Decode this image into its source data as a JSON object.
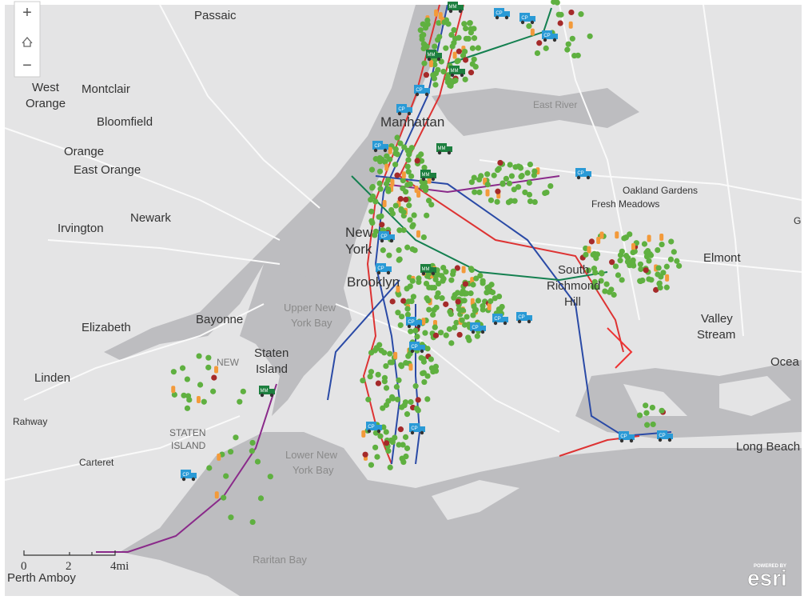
{
  "controls": {
    "zoom_in": "+",
    "zoom_out": "−"
  },
  "labels": {
    "passaic": "Passaic",
    "west_orange": [
      "West",
      "Orange"
    ],
    "montclair": "Montclair",
    "bloomfield": "Bloomfield",
    "orange": "Orange",
    "east_orange": "East Orange",
    "newark": "Newark",
    "irvington": "Irvington",
    "elizabeth": "Elizabeth",
    "bayonne": "Bayonne",
    "linden": "Linden",
    "rahway": "Rahway",
    "carteret": "Carteret",
    "perth_amboy": "Perth Amboy",
    "manhattan": "Manhattan",
    "east_river": "East River",
    "oakland_gardens": "Oakland Gardens",
    "fresh_meadows": "Fresh Meadows",
    "elmont": "Elmont",
    "new_york": [
      "New",
      "York"
    ],
    "brooklyn": "Brooklyn",
    "south_richmond_hill": [
      "South",
      "Richmond",
      "Hill"
    ],
    "valley_stream": [
      "Valley",
      "Stream"
    ],
    "upper_bay": [
      "Upper New",
      "York Bay"
    ],
    "staten_island": [
      "Staten",
      "Island"
    ],
    "staten_island_area": [
      "STATEN",
      "ISLAND"
    ],
    "new_fragment": "NEW",
    "lower_bay": [
      "Lower New",
      "York Bay"
    ],
    "raritan_bay": "Raritan Bay",
    "long_beach": "Long Beach",
    "ocean_fragment": "Ocea",
    "right_fragment": "G"
  },
  "markers": {
    "cp": "CP",
    "mm": "MM"
  },
  "scale_bar": {
    "ticks": [
      "0",
      "2",
      "4mi"
    ]
  },
  "attribution": {
    "powered_by": "POWERED BY",
    "brand": "esri"
  }
}
